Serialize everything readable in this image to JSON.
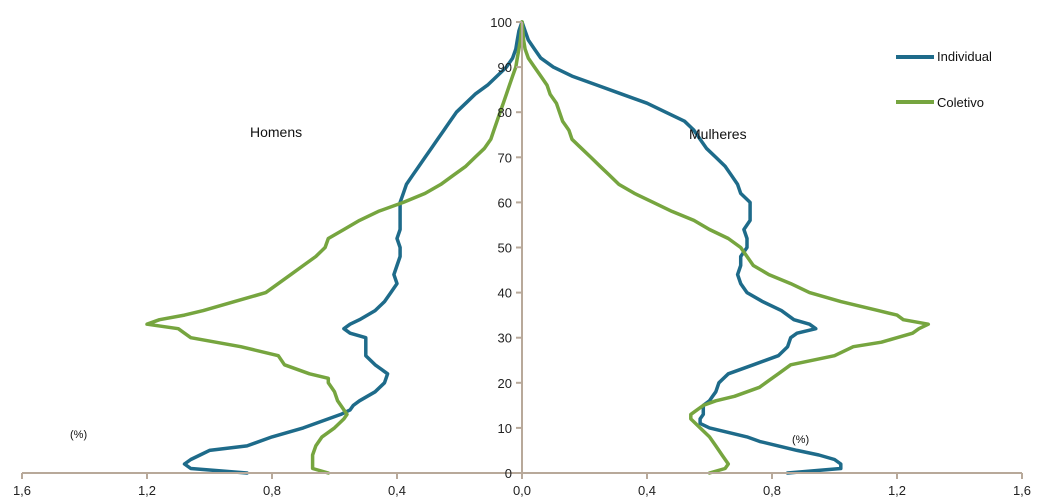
{
  "chart_data": {
    "type": "line",
    "orientation": "population-pyramid",
    "x_ticks": [
      "1,6",
      "1,2",
      "0,8",
      "0,4",
      "0,0",
      "0,4",
      "0,8",
      "1,2",
      "1,6"
    ],
    "y_ticks": [
      "0",
      "10",
      "20",
      "30",
      "40",
      "50",
      "60",
      "70",
      "80",
      "90",
      "100"
    ],
    "xlim": [
      -1.6,
      1.6
    ],
    "ylim": [
      0,
      100
    ],
    "grid": false,
    "legend_position": "top-right",
    "annotations": {
      "left_group": "Homens",
      "right_group": "Mulheres",
      "unit_left": "(%)",
      "unit_right": "(%)"
    },
    "series": [
      {
        "name": "Individual",
        "color": "#1e6b8a",
        "homens": [
          [
            0,
            0.88
          ],
          [
            1,
            1.06
          ],
          [
            2,
            1.08
          ],
          [
            3,
            1.06
          ],
          [
            4,
            1.03
          ],
          [
            5,
            1.0
          ],
          [
            6,
            0.88
          ],
          [
            8,
            0.8
          ],
          [
            10,
            0.7
          ],
          [
            12,
            0.62
          ],
          [
            13,
            0.58
          ],
          [
            14,
            0.55
          ],
          [
            15,
            0.54
          ],
          [
            16,
            0.52
          ],
          [
            18,
            0.47
          ],
          [
            20,
            0.44
          ],
          [
            22,
            0.43
          ],
          [
            24,
            0.47
          ],
          [
            26,
            0.5
          ],
          [
            28,
            0.5
          ],
          [
            30,
            0.5
          ],
          [
            31,
            0.55
          ],
          [
            32,
            0.57
          ],
          [
            33,
            0.55
          ],
          [
            34,
            0.52
          ],
          [
            36,
            0.47
          ],
          [
            38,
            0.44
          ],
          [
            40,
            0.42
          ],
          [
            42,
            0.4
          ],
          [
            44,
            0.41
          ],
          [
            46,
            0.4
          ],
          [
            48,
            0.39
          ],
          [
            50,
            0.39
          ],
          [
            52,
            0.4
          ],
          [
            54,
            0.39
          ],
          [
            56,
            0.39
          ],
          [
            58,
            0.39
          ],
          [
            60,
            0.39
          ],
          [
            62,
            0.38
          ],
          [
            64,
            0.37
          ],
          [
            66,
            0.35
          ],
          [
            68,
            0.33
          ],
          [
            70,
            0.31
          ],
          [
            72,
            0.29
          ],
          [
            74,
            0.27
          ],
          [
            76,
            0.25
          ],
          [
            78,
            0.23
          ],
          [
            80,
            0.21
          ],
          [
            82,
            0.18
          ],
          [
            84,
            0.15
          ],
          [
            86,
            0.11
          ],
          [
            88,
            0.08
          ],
          [
            90,
            0.05
          ],
          [
            92,
            0.03
          ],
          [
            94,
            0.02
          ],
          [
            96,
            0.015
          ],
          [
            98,
            0.01
          ],
          [
            100,
            0.0
          ]
        ],
        "mulheres": [
          [
            0,
            0.85
          ],
          [
            1,
            1.02
          ],
          [
            2,
            1.02
          ],
          [
            3,
            1.0
          ],
          [
            4,
            0.95
          ],
          [
            5,
            0.88
          ],
          [
            6,
            0.82
          ],
          [
            7,
            0.76
          ],
          [
            8,
            0.72
          ],
          [
            9,
            0.66
          ],
          [
            10,
            0.6
          ],
          [
            11,
            0.57
          ],
          [
            12,
            0.57
          ],
          [
            13,
            0.58
          ],
          [
            14,
            0.58
          ],
          [
            15,
            0.58
          ],
          [
            16,
            0.6
          ],
          [
            17,
            0.61
          ],
          [
            18,
            0.62
          ],
          [
            20,
            0.63
          ],
          [
            22,
            0.66
          ],
          [
            24,
            0.74
          ],
          [
            26,
            0.82
          ],
          [
            28,
            0.85
          ],
          [
            30,
            0.86
          ],
          [
            31,
            0.88
          ],
          [
            32,
            0.94
          ],
          [
            33,
            0.92
          ],
          [
            34,
            0.87
          ],
          [
            36,
            0.83
          ],
          [
            38,
            0.77
          ],
          [
            40,
            0.72
          ],
          [
            42,
            0.7
          ],
          [
            44,
            0.69
          ],
          [
            46,
            0.7
          ],
          [
            48,
            0.7
          ],
          [
            50,
            0.72
          ],
          [
            52,
            0.72
          ],
          [
            54,
            0.71
          ],
          [
            56,
            0.73
          ],
          [
            58,
            0.73
          ],
          [
            60,
            0.73
          ],
          [
            62,
            0.7
          ],
          [
            64,
            0.69
          ],
          [
            66,
            0.67
          ],
          [
            68,
            0.65
          ],
          [
            70,
            0.62
          ],
          [
            72,
            0.59
          ],
          [
            74,
            0.57
          ],
          [
            76,
            0.55
          ],
          [
            78,
            0.52
          ],
          [
            80,
            0.46
          ],
          [
            82,
            0.4
          ],
          [
            84,
            0.32
          ],
          [
            86,
            0.24
          ],
          [
            88,
            0.16
          ],
          [
            90,
            0.1
          ],
          [
            92,
            0.06
          ],
          [
            94,
            0.04
          ],
          [
            96,
            0.02
          ],
          [
            98,
            0.01
          ],
          [
            100,
            0.0
          ]
        ]
      },
      {
        "name": "Coletivo",
        "color": "#76a53f",
        "homens": [
          [
            0,
            0.62
          ],
          [
            1,
            0.67
          ],
          [
            2,
            0.67
          ],
          [
            4,
            0.67
          ],
          [
            6,
            0.66
          ],
          [
            8,
            0.64
          ],
          [
            10,
            0.6
          ],
          [
            12,
            0.57
          ],
          [
            13,
            0.56
          ],
          [
            14,
            0.57
          ],
          [
            15,
            0.58
          ],
          [
            16,
            0.59
          ],
          [
            18,
            0.6
          ],
          [
            20,
            0.62
          ],
          [
            21,
            0.62
          ],
          [
            22,
            0.68
          ],
          [
            24,
            0.76
          ],
          [
            26,
            0.78
          ],
          [
            28,
            0.9
          ],
          [
            30,
            1.06
          ],
          [
            31,
            1.08
          ],
          [
            32,
            1.1
          ],
          [
            33,
            1.2
          ],
          [
            34,
            1.16
          ],
          [
            35,
            1.08
          ],
          [
            36,
            1.02
          ],
          [
            38,
            0.92
          ],
          [
            40,
            0.82
          ],
          [
            42,
            0.78
          ],
          [
            44,
            0.74
          ],
          [
            46,
            0.7
          ],
          [
            48,
            0.66
          ],
          [
            50,
            0.63
          ],
          [
            52,
            0.62
          ],
          [
            54,
            0.57
          ],
          [
            56,
            0.52
          ],
          [
            58,
            0.46
          ],
          [
            60,
            0.38
          ],
          [
            62,
            0.31
          ],
          [
            64,
            0.26
          ],
          [
            66,
            0.22
          ],
          [
            68,
            0.18
          ],
          [
            70,
            0.15
          ],
          [
            72,
            0.12
          ],
          [
            74,
            0.1
          ],
          [
            76,
            0.09
          ],
          [
            78,
            0.08
          ],
          [
            80,
            0.07
          ],
          [
            82,
            0.06
          ],
          [
            84,
            0.05
          ],
          [
            86,
            0.04
          ],
          [
            88,
            0.03
          ],
          [
            90,
            0.02
          ],
          [
            92,
            0.015
          ],
          [
            94,
            0.01
          ],
          [
            96,
            0.005
          ],
          [
            100,
            0.0
          ]
        ],
        "mulheres": [
          [
            0,
            0.6
          ],
          [
            1,
            0.65
          ],
          [
            2,
            0.66
          ],
          [
            4,
            0.64
          ],
          [
            6,
            0.62
          ],
          [
            8,
            0.6
          ],
          [
            10,
            0.57
          ],
          [
            12,
            0.54
          ],
          [
            13,
            0.54
          ],
          [
            14,
            0.56
          ],
          [
            15,
            0.58
          ],
          [
            16,
            0.62
          ],
          [
            17,
            0.68
          ],
          [
            18,
            0.72
          ],
          [
            19,
            0.76
          ],
          [
            20,
            0.78
          ],
          [
            22,
            0.82
          ],
          [
            24,
            0.86
          ],
          [
            26,
            1.0
          ],
          [
            28,
            1.06
          ],
          [
            29,
            1.15
          ],
          [
            30,
            1.2
          ],
          [
            31,
            1.25
          ],
          [
            32,
            1.27
          ],
          [
            33,
            1.3
          ],
          [
            34,
            1.22
          ],
          [
            35,
            1.2
          ],
          [
            36,
            1.14
          ],
          [
            37,
            1.08
          ],
          [
            38,
            1.02
          ],
          [
            40,
            0.92
          ],
          [
            42,
            0.86
          ],
          [
            44,
            0.79
          ],
          [
            46,
            0.74
          ],
          [
            48,
            0.72
          ],
          [
            50,
            0.7
          ],
          [
            52,
            0.66
          ],
          [
            54,
            0.6
          ],
          [
            56,
            0.55
          ],
          [
            58,
            0.48
          ],
          [
            60,
            0.42
          ],
          [
            62,
            0.36
          ],
          [
            64,
            0.31
          ],
          [
            66,
            0.28
          ],
          [
            68,
            0.25
          ],
          [
            70,
            0.22
          ],
          [
            72,
            0.19
          ],
          [
            74,
            0.16
          ],
          [
            76,
            0.15
          ],
          [
            78,
            0.13
          ],
          [
            80,
            0.12
          ],
          [
            82,
            0.11
          ],
          [
            84,
            0.09
          ],
          [
            86,
            0.08
          ],
          [
            88,
            0.06
          ],
          [
            90,
            0.04
          ],
          [
            92,
            0.02
          ],
          [
            94,
            0.01
          ],
          [
            96,
            0.005
          ],
          [
            100,
            0.0
          ]
        ]
      }
    ]
  }
}
